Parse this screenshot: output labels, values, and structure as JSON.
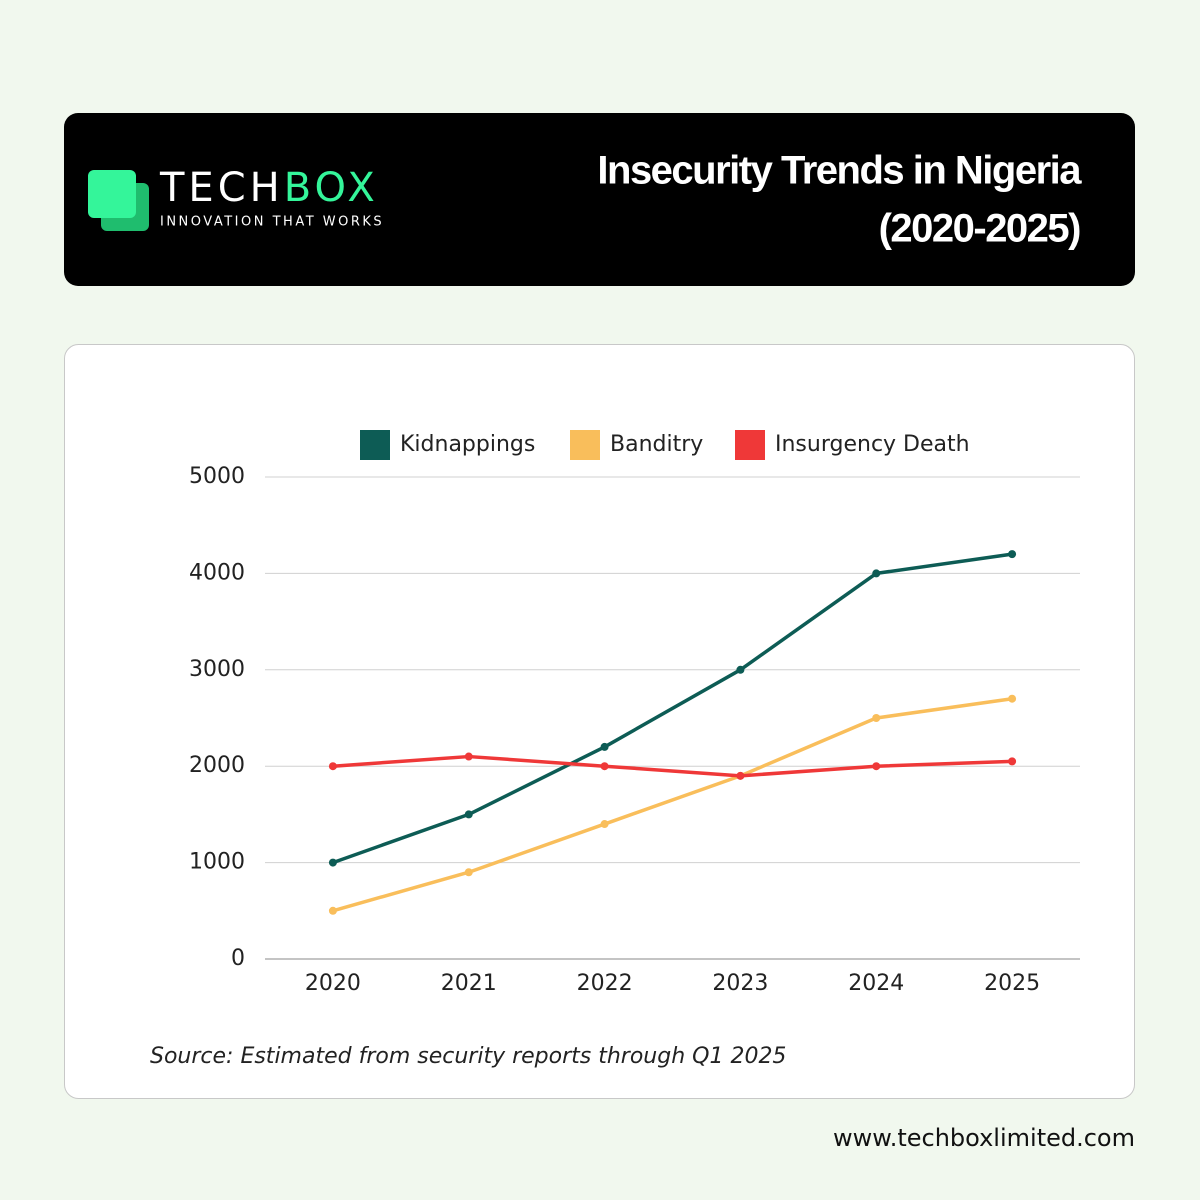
{
  "header": {
    "logo_part1": "TECH",
    "logo_part2": "BOX",
    "tagline": "INNOVATION THAT WORKS",
    "title": "Insecurity Trends in Nigeria",
    "subtitle": "(2020-2025)"
  },
  "chart_data": {
    "type": "line",
    "categories": [
      "2020",
      "2021",
      "2022",
      "2023",
      "2024",
      "2025"
    ],
    "series": [
      {
        "name": "Kidnappings",
        "color": "#0d5c55",
        "values": [
          1000,
          1500,
          2200,
          3000,
          4000,
          4200
        ]
      },
      {
        "name": "Banditry",
        "color": "#f9be5b",
        "values": [
          500,
          900,
          1400,
          1900,
          2500,
          2700
        ]
      },
      {
        "name": "Insurgency Death",
        "color": "#ef3838",
        "values": [
          2000,
          2100,
          2000,
          1900,
          2000,
          2050
        ]
      }
    ],
    "ylim": [
      0,
      5000
    ],
    "yticks": [
      0,
      1000,
      2000,
      3000,
      4000,
      5000
    ],
    "grid": true,
    "legend": "top",
    "source": "Source: Estimated from security reports through Q1 2025"
  },
  "footer": {
    "website": "www.techboxlimited.com"
  }
}
